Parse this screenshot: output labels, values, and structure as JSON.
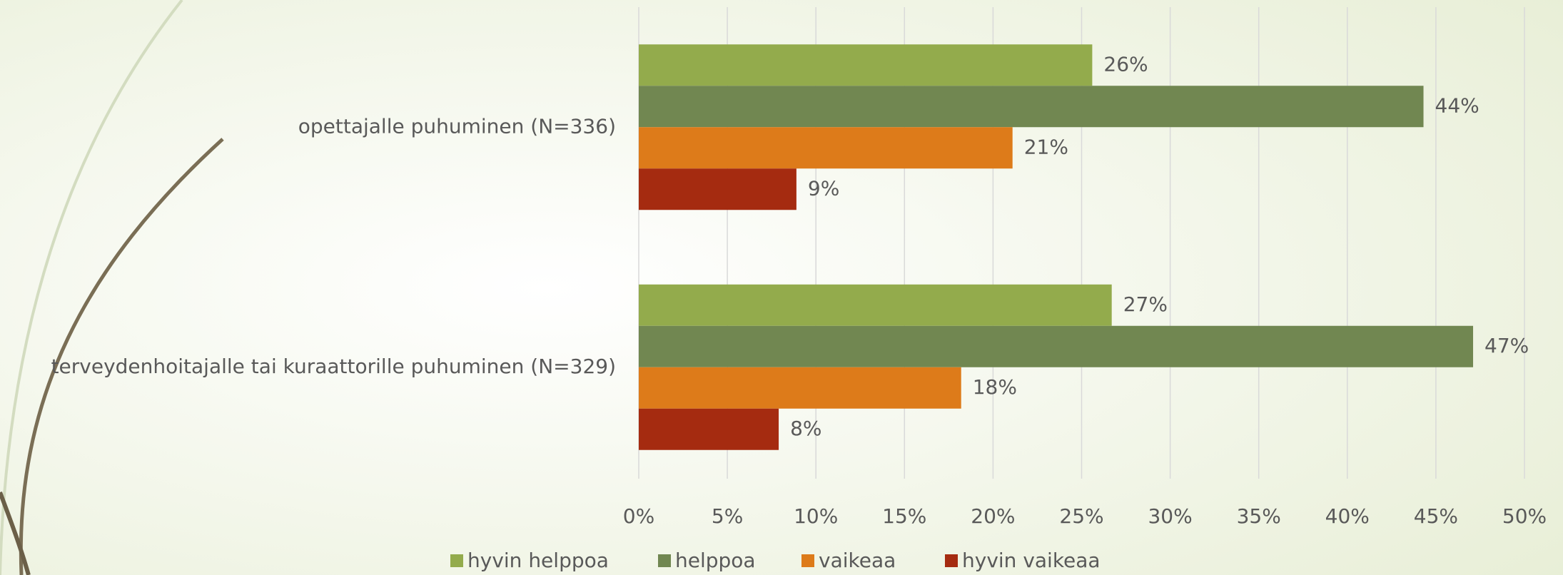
{
  "chart_data": {
    "type": "bar",
    "orientation": "horizontal",
    "categories": [
      "opettajalle puhuminen (N=336)",
      "terveydenhoitajalle tai kuraattorille puhuminen (N=329)"
    ],
    "series": [
      {
        "name": "hyvin helppoa",
        "color": "#93ab4c",
        "values": [
          25.6,
          26.7
        ],
        "value_labels": [
          "26%",
          "27%"
        ]
      },
      {
        "name": "helppoa",
        "color": "#718751",
        "values": [
          44.3,
          47.1
        ],
        "value_labels": [
          "44%",
          "47%"
        ]
      },
      {
        "name": "vaikeaa",
        "color": "#dd7b1a",
        "values": [
          21.1,
          18.2
        ],
        "value_labels": [
          "21%",
          "18%"
        ]
      },
      {
        "name": "hyvin vaikeaa",
        "color": "#a52b10",
        "values": [
          8.9,
          7.9
        ],
        "value_labels": [
          "9%",
          "8%"
        ]
      }
    ],
    "xlim": [
      0,
      50
    ],
    "xticks": [
      {
        "value": 0,
        "label": "0%"
      },
      {
        "value": 5,
        "label": "5%"
      },
      {
        "value": 10,
        "label": "10%"
      },
      {
        "value": 15,
        "label": "15%"
      },
      {
        "value": 20,
        "label": "20%"
      },
      {
        "value": 25,
        "label": "25%"
      },
      {
        "value": 30,
        "label": "30%"
      },
      {
        "value": 35,
        "label": "35%"
      },
      {
        "value": 40,
        "label": "40%"
      },
      {
        "value": 45,
        "label": "45%"
      },
      {
        "value": 50,
        "label": "50%"
      }
    ],
    "grid": true,
    "legend": "bottom"
  }
}
